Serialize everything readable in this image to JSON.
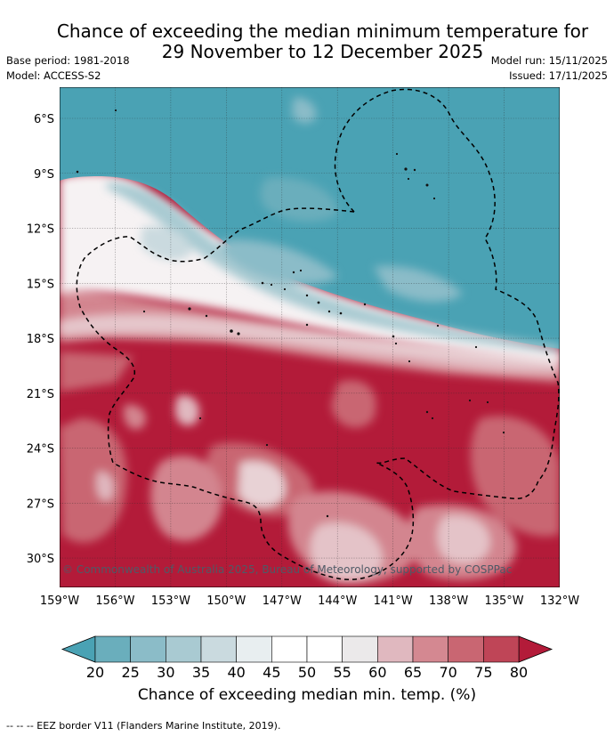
{
  "title": {
    "line1": "Chance of exceeding the median minimum temperature for",
    "line2": "29 November to 12 December 2025"
  },
  "meta": {
    "base_period": "Base period: 1981-2018",
    "model": "Model: ACCESS-S2",
    "model_run": "Model run: 15/11/2025",
    "issued": "Issued: 17/11/2025"
  },
  "map": {
    "lat_ticks": [
      "6°S",
      "9°S",
      "12°S",
      "15°S",
      "18°S",
      "21°S",
      "24°S",
      "27°S",
      "30°S"
    ],
    "lon_ticks": [
      "159°W",
      "156°W",
      "153°W",
      "150°W",
      "147°W",
      "144°W",
      "141°W",
      "138°W",
      "135°W",
      "132°W"
    ],
    "extent": {
      "lon": [
        -159,
        -132
      ],
      "lat": [
        -31.6,
        -4.3
      ]
    },
    "credit": "© Commonwealth of Australia 2025, Bureau of Meteorology, supported by COSPPac",
    "colors": {
      "below": "#4aa2b4",
      "neutral": "#ffffff",
      "above": "#b31b39"
    }
  },
  "colorbar": {
    "ticks": [
      "20",
      "25",
      "30",
      "35",
      "40",
      "45",
      "50",
      "55",
      "60",
      "65",
      "70",
      "75",
      "80"
    ],
    "colors": [
      "#6aaebc",
      "#8bbcc8",
      "#a9cad2",
      "#cadadf",
      "#e8eef0",
      "#ffffff",
      "#ffffff",
      "#ebe9ea",
      "#e0b8bf",
      "#d48891",
      "#c96672",
      "#bf4557"
    ],
    "low_color": "#4aa2b4",
    "high_color": "#b31b39",
    "label": "Chance of exceeding median min. temp. (%)"
  },
  "footer": "--  --  -- EEZ border V11 (Flanders Marine Institute, 2019)."
}
